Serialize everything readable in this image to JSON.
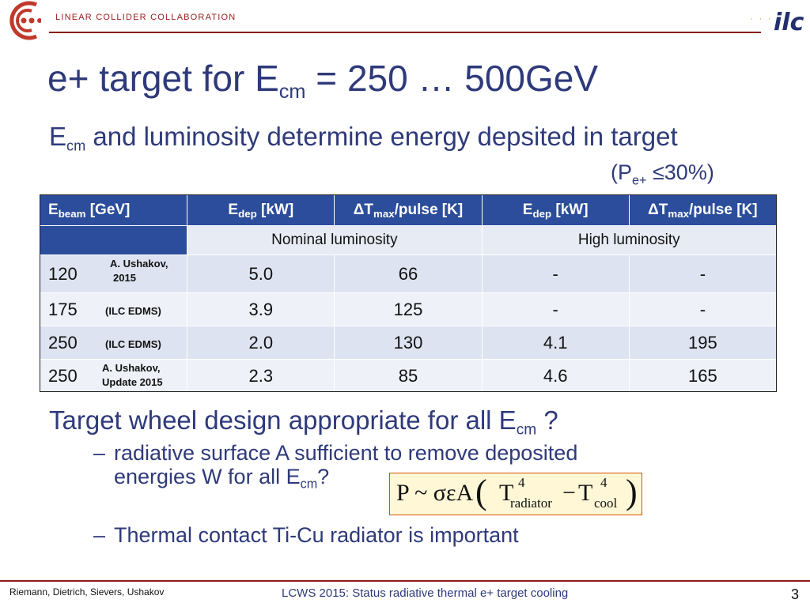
{
  "header": {
    "org_name": "LINEAR COLLIDER COLLABORATION",
    "ilc_logo_text": "ilc",
    "dots": "· · · ·",
    "brand_color": "#c0392b"
  },
  "title": {
    "pre": "e+ target for E",
    "sub": "cm",
    "post": " = 250 … 500GeV"
  },
  "subtitle": {
    "pre": "E",
    "sub": "cm",
    "post": " and luminosity determine energy depsited in target"
  },
  "polarization": {
    "pre": "(P",
    "sub": "e+",
    "post": " ≤30%)"
  },
  "table": {
    "headers": [
      {
        "pre": "E",
        "sub": "beam",
        "post": " [GeV]"
      },
      {
        "pre": "E",
        "sub": "dep",
        "post": " [kW]"
      },
      {
        "pre": "ΔT",
        "sub": "max",
        "post": "/pulse [K]"
      },
      {
        "pre": "E",
        "sub": "dep",
        "post": " [kW]"
      },
      {
        "pre": "ΔT",
        "sub": "max",
        "post": "/pulse [K]"
      }
    ],
    "nominal_label": "Nominal luminosity",
    "high_label": "High luminosity",
    "rows": [
      {
        "ebeam": "120",
        "src1": "A. Ushakov,",
        "src2": "2015",
        "edep_nom": "5.0",
        "dt_nom": "66",
        "edep_high": "-",
        "dt_high": "-"
      },
      {
        "ebeam": "175",
        "src1": "(ILC EDMS)",
        "src2": "",
        "edep_nom": "3.9",
        "dt_nom": "125",
        "edep_high": "-",
        "dt_high": "-"
      },
      {
        "ebeam": "250",
        "src1": "(ILC EDMS)",
        "src2": "",
        "edep_nom": "2.0",
        "dt_nom": "130",
        "edep_high": "4.1",
        "dt_high": "195"
      },
      {
        "ebeam": "250",
        "src1": "A. Ushakov,",
        "src2": "Update 2015",
        "edep_nom": "2.3",
        "dt_nom": "85",
        "edep_high": "4.6",
        "dt_high": "165"
      }
    ],
    "header_color": "#2b4d9b"
  },
  "question": {
    "pre": "Target wheel design appropriate for all E",
    "sub": "cm",
    "post": " ?"
  },
  "bullet1": {
    "dash": "–",
    "line1": "radiative surface A sufficient  to remove deposited",
    "line2_pre": "energies W for all E",
    "line2_sub": "cm",
    "line2_post": "?"
  },
  "formula": {
    "lhs": "P ~ σεA",
    "lparen": "(",
    "t1": "T",
    "exp1": "4",
    "sub1": "radiator",
    "minus": "−",
    "t2": "T",
    "exp2": "4",
    "sub2": "cool",
    "rparen": ")"
  },
  "bullet2": {
    "dash": "–",
    "text": "Thermal contact Ti-Cu radiator is important"
  },
  "footer": {
    "authors": "Riemann, Dietrich, Sievers, Ushakov",
    "conference": "LCWS 2015:  Status radiative thermal e+ target cooling",
    "page": "3"
  }
}
